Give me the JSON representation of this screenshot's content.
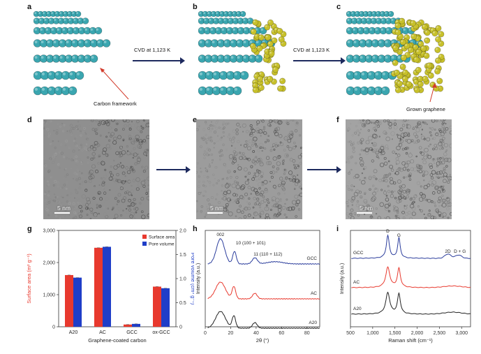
{
  "panels": {
    "a": "a",
    "b": "b",
    "c": "c",
    "d": "d",
    "e": "e",
    "f": "f",
    "g": "g",
    "h": "h",
    "i": "i"
  },
  "schematics": {
    "cvd_label_1": "CVD at 1,123 K",
    "cvd_label_2": "CVD at 1,123 K",
    "carbon_framework_label": "Carbon framework",
    "grown_graphene_label": "Grown graphene",
    "colors": {
      "carbon": "#3aa6b0",
      "graphene": "#c7c02a",
      "arrow": "#1d2a5e",
      "callout": "#d23a2a"
    }
  },
  "tem": {
    "scalebar_d": "5 nm",
    "scalebar_e": "5 nm",
    "scalebar_f": "5 nm"
  },
  "chart_data": [
    {
      "panel": "g",
      "type": "bar",
      "categories": [
        "A20",
        "AC",
        "GCC",
        "ox-GCC"
      ],
      "xlabel": "Graphene-coated carbon",
      "ylabel": "Surface area (m² g⁻¹)",
      "ylabel2": "Pore volume (cm³ g⁻¹)",
      "ylim": [
        0,
        3000
      ],
      "ylim2": [
        0,
        2.0
      ],
      "yticks": [
        "0",
        "1,000",
        "2,000",
        "3,000"
      ],
      "yticks2": [
        "0",
        "0.5",
        "1.0",
        "1.5",
        "2.0"
      ],
      "series": [
        {
          "name": "Surface area",
          "values": [
            1610,
            2460,
            70,
            1250
          ],
          "color": "#e8392e"
        },
        {
          "name": "Pore volume",
          "values": [
            1.02,
            1.66,
            0.06,
            0.8
          ],
          "color": "#1f3ec8"
        }
      ],
      "legend": "top-right"
    },
    {
      "panel": "h",
      "type": "line",
      "xlabel": "2θ (°)",
      "ylabel": "Intensity (a.u.)",
      "xlim": [
        0,
        90
      ],
      "xticks": [
        "0",
        "20",
        "40",
        "60",
        "80"
      ],
      "annotations": [
        "002",
        "10 (100 + 101)",
        "11 (110 + 112)"
      ],
      "series": [
        {
          "name": "GCC",
          "color": "#2a3c9c"
        },
        {
          "name": "AC",
          "color": "#e8392e"
        },
        {
          "name": "A20",
          "color": "#222222"
        }
      ]
    },
    {
      "panel": "i",
      "type": "line",
      "xlabel": "Raman shift (cm⁻¹)",
      "ylabel": "Intensity (a.u.)",
      "xlim": [
        500,
        3200
      ],
      "xticks": [
        "500",
        "1,000",
        "1,500",
        "2,000",
        "2,500",
        "3,000"
      ],
      "annotations": [
        "D",
        "G",
        "2D",
        "D + G"
      ],
      "series": [
        {
          "name": "GCC",
          "color": "#2a3c9c"
        },
        {
          "name": "AC",
          "color": "#e8392e"
        },
        {
          "name": "A20",
          "color": "#222222"
        }
      ]
    }
  ]
}
